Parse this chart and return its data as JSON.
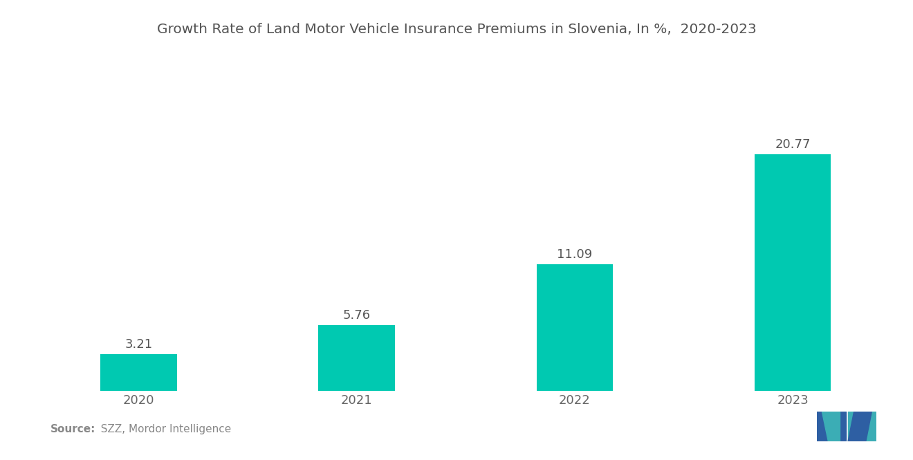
{
  "title": "Growth Rate of Land Motor Vehicle Insurance Premiums in Slovenia, In %,  2020-2023",
  "categories": [
    "2020",
    "2021",
    "2022",
    "2023"
  ],
  "values": [
    3.21,
    5.76,
    11.09,
    20.77
  ],
  "bar_color": "#00C9B1",
  "background_color": "#ffffff",
  "title_fontsize": 14.5,
  "label_fontsize": 13,
  "tick_fontsize": 13,
  "source_bold": "Source:",
  "source_normal": "  SZZ, Mordor Intelligence",
  "ylim": [
    0,
    27
  ],
  "bar_width": 0.35,
  "logo_color1": "#2E5FA3",
  "logo_color2": "#3BADB5"
}
